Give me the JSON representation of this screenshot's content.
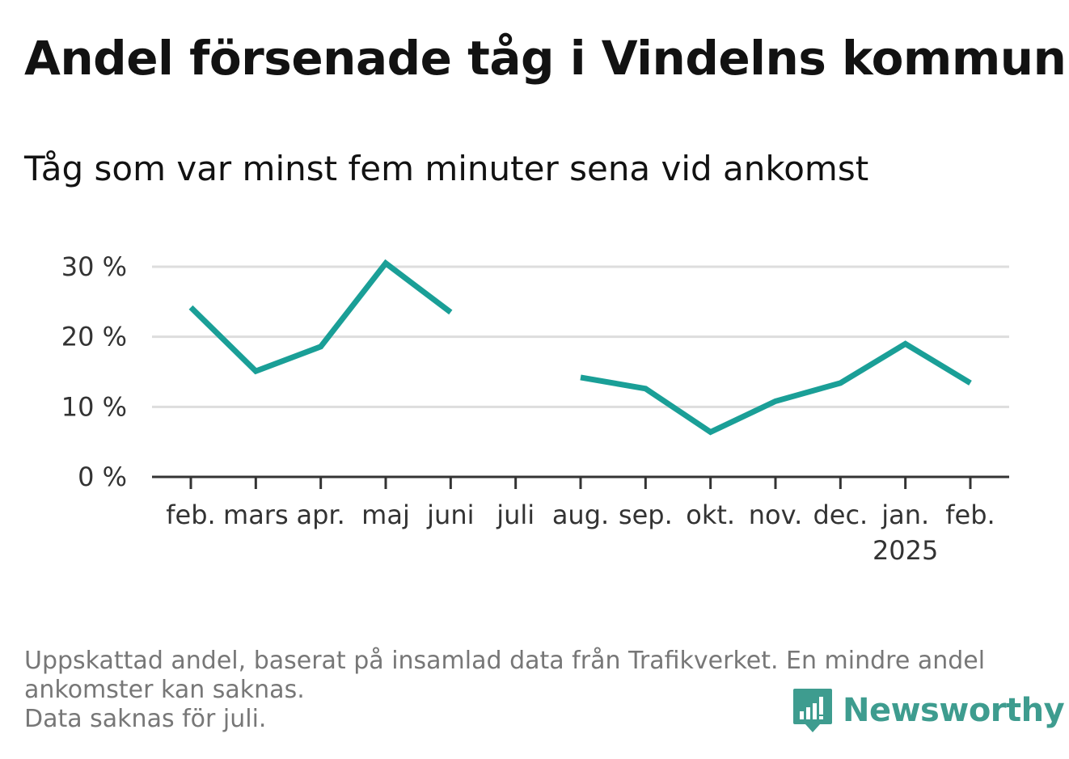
{
  "title": "Andel försenade tåg i Vindelns kommun",
  "subtitle": "Tåg som var minst fem minuter sena vid ankomst",
  "notes": [
    "Uppskattad andel, baserat på insamlad data från Trafikverket. En mindre andel",
    "ankomster kan saknas.",
    "Data saknas för juli."
  ],
  "brand": "Newsworthy",
  "colors": {
    "line": "#1a9f97",
    "grid": "#dddddd",
    "axis": "#333333",
    "brand": "#3e9c8f"
  },
  "chart_data": {
    "type": "line",
    "categories": [
      "feb.",
      "mars",
      "apr.",
      "maj",
      "juni",
      "juli",
      "aug.",
      "sep.",
      "okt.",
      "nov.",
      "dec.",
      "jan.",
      "feb."
    ],
    "year_label": {
      "category_index": 11,
      "text": "2025"
    },
    "series": [
      {
        "values": [
          24.2,
          15.1,
          18.6,
          30.5,
          23.5,
          null,
          14.2,
          12.6,
          6.4,
          10.8,
          13.4,
          19.0,
          13.4
        ]
      }
    ],
    "yticks": [
      0,
      10,
      20,
      30
    ],
    "ytick_labels": [
      "0 %",
      "10 %",
      "20 %",
      "30 %"
    ],
    "ylim": [
      0,
      30
    ],
    "grid": true,
    "xlabel": "",
    "ylabel": ""
  }
}
